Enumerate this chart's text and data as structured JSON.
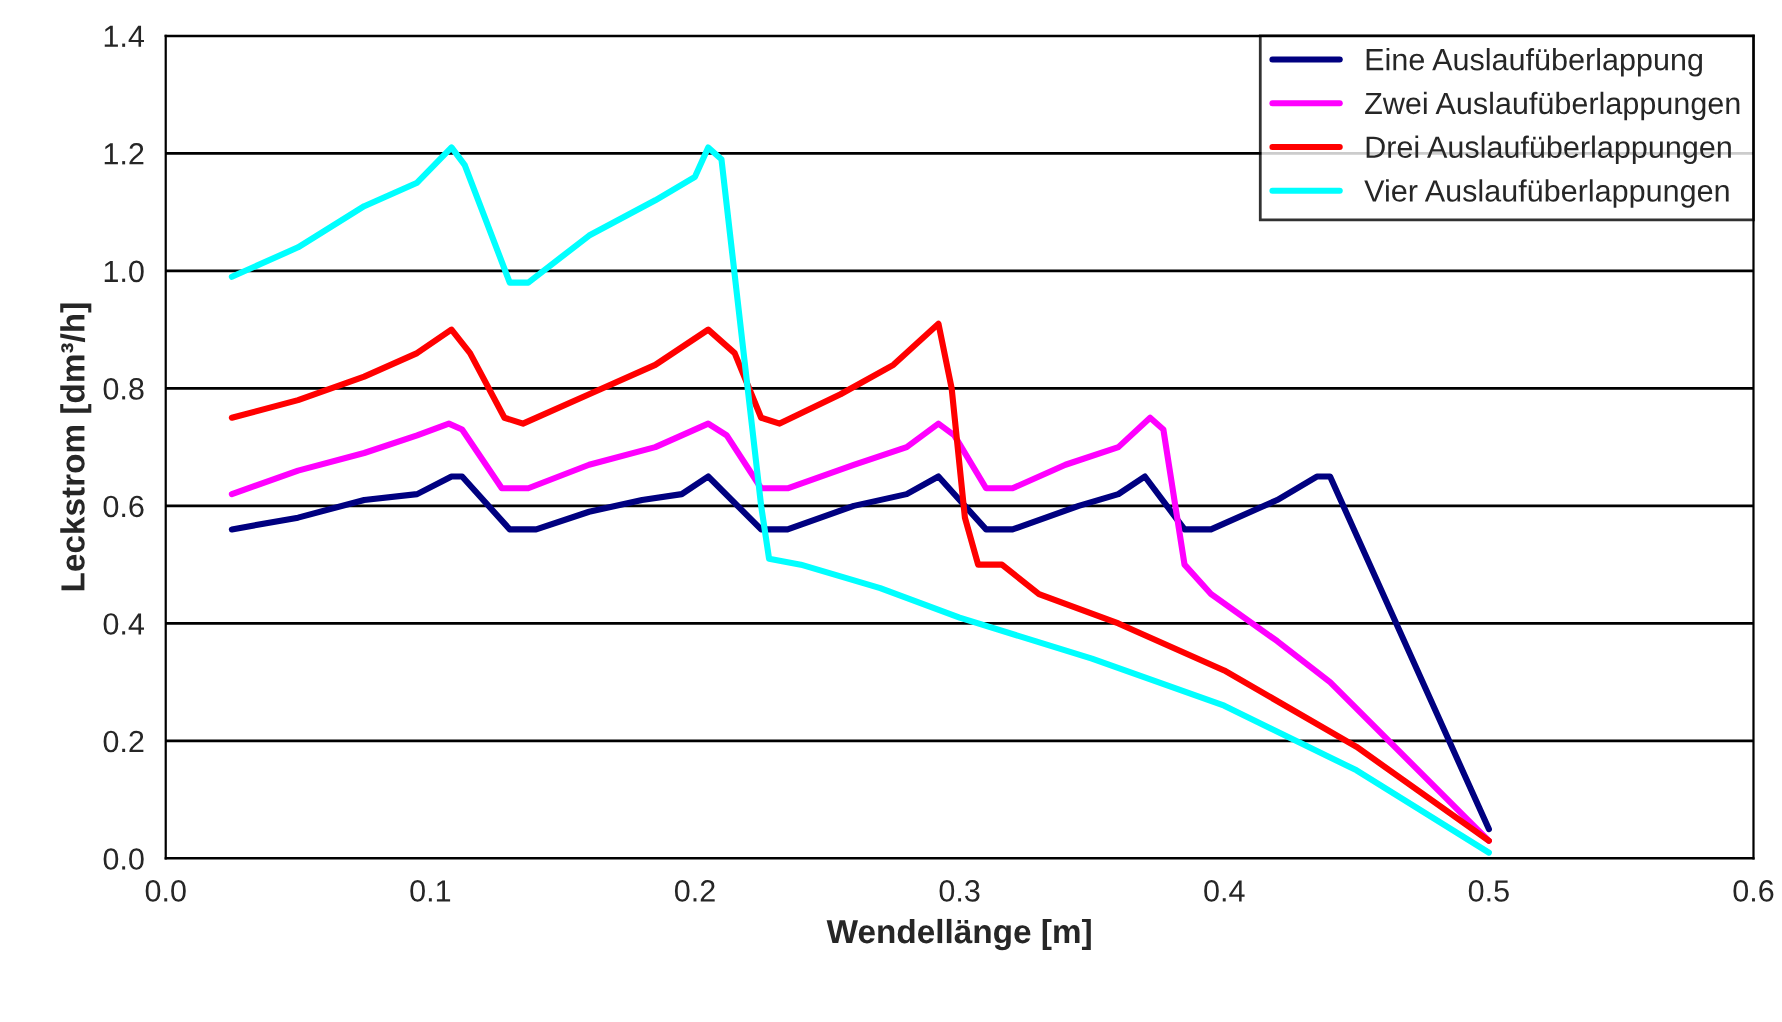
{
  "chart_data": {
    "type": "line",
    "xlabel": "Wendellänge [m]",
    "ylabel": "Leckstrom [dm³/h]",
    "xlim": [
      0,
      0.6
    ],
    "ylim": [
      0,
      1.4
    ],
    "xticks": [
      {
        "value": 0,
        "label": "0.0"
      },
      {
        "value": 0.1,
        "label": "0.1"
      },
      {
        "value": 0.2,
        "label": "0.2"
      },
      {
        "value": 0.3,
        "label": "0.3"
      },
      {
        "value": 0.4,
        "label": "0.4"
      },
      {
        "value": 0.5,
        "label": "0.5"
      },
      {
        "value": 0.6,
        "label": "0.6"
      }
    ],
    "yticks": [
      {
        "value": 0,
        "label": "0.0"
      },
      {
        "value": 0.2,
        "label": "0.2"
      },
      {
        "value": 0.4,
        "label": "0.4"
      },
      {
        "value": 0.6,
        "label": "0.6"
      },
      {
        "value": 0.8,
        "label": "0.8"
      },
      {
        "value": 1.0,
        "label": "1.0"
      },
      {
        "value": 1.2,
        "label": "1.2"
      },
      {
        "value": 1.4,
        "label": "1.4"
      }
    ],
    "grid": "y",
    "legend": "top right",
    "marker": "none",
    "line_style": "solid",
    "series": [
      {
        "name": "Eine Auslaufüberlappung",
        "color": "#000080",
        "x": [
          0.025,
          0.05,
          0.075,
          0.095,
          0.108,
          0.112,
          0.13,
          0.14,
          0.16,
          0.18,
          0.195,
          0.205,
          0.225,
          0.235,
          0.26,
          0.28,
          0.292,
          0.31,
          0.32,
          0.345,
          0.36,
          0.37,
          0.385,
          0.395,
          0.42,
          0.435,
          0.44,
          0.45,
          0.5
        ],
        "values": [
          0.56,
          0.58,
          0.61,
          0.62,
          0.65,
          0.65,
          0.56,
          0.56,
          0.59,
          0.61,
          0.62,
          0.65,
          0.56,
          0.56,
          0.6,
          0.62,
          0.65,
          0.56,
          0.56,
          0.6,
          0.62,
          0.65,
          0.56,
          0.56,
          0.61,
          0.65,
          0.65,
          0.55,
          0.05
        ]
      },
      {
        "name": "Zwei Auslaufüberlappungen",
        "color": "#ff00ff",
        "x": [
          0.025,
          0.05,
          0.075,
          0.095,
          0.107,
          0.112,
          0.127,
          0.137,
          0.16,
          0.185,
          0.205,
          0.212,
          0.225,
          0.235,
          0.26,
          0.28,
          0.292,
          0.298,
          0.31,
          0.32,
          0.34,
          0.36,
          0.372,
          0.377,
          0.385,
          0.395,
          0.42,
          0.44,
          0.5
        ],
        "values": [
          0.62,
          0.66,
          0.69,
          0.72,
          0.74,
          0.73,
          0.63,
          0.63,
          0.67,
          0.7,
          0.74,
          0.72,
          0.63,
          0.63,
          0.67,
          0.7,
          0.74,
          0.72,
          0.63,
          0.63,
          0.67,
          0.7,
          0.75,
          0.73,
          0.5,
          0.45,
          0.37,
          0.3,
          0.03
        ]
      },
      {
        "name": "Drei Auslaufüberlappungen",
        "color": "#ff0000",
        "x": [
          0.025,
          0.05,
          0.075,
          0.095,
          0.108,
          0.115,
          0.128,
          0.135,
          0.16,
          0.185,
          0.205,
          0.215,
          0.225,
          0.232,
          0.255,
          0.275,
          0.292,
          0.297,
          0.302,
          0.307,
          0.316,
          0.33,
          0.36,
          0.4,
          0.45,
          0.5
        ],
        "values": [
          0.75,
          0.78,
          0.82,
          0.86,
          0.9,
          0.86,
          0.75,
          0.74,
          0.79,
          0.84,
          0.9,
          0.86,
          0.75,
          0.74,
          0.79,
          0.84,
          0.91,
          0.8,
          0.58,
          0.5,
          0.5,
          0.45,
          0.4,
          0.32,
          0.19,
          0.03
        ]
      },
      {
        "name": "Vier Auslaufüberlappungen",
        "color": "#00ffff",
        "x": [
          0.025,
          0.05,
          0.075,
          0.095,
          0.108,
          0.113,
          0.13,
          0.137,
          0.16,
          0.185,
          0.2,
          0.205,
          0.21,
          0.225,
          0.228,
          0.24,
          0.27,
          0.3,
          0.35,
          0.4,
          0.45,
          0.5
        ],
        "values": [
          0.99,
          1.04,
          1.11,
          1.15,
          1.21,
          1.18,
          0.98,
          0.98,
          1.06,
          1.12,
          1.16,
          1.21,
          1.19,
          0.6,
          0.51,
          0.5,
          0.46,
          0.41,
          0.34,
          0.26,
          0.15,
          0.01
        ]
      }
    ]
  }
}
